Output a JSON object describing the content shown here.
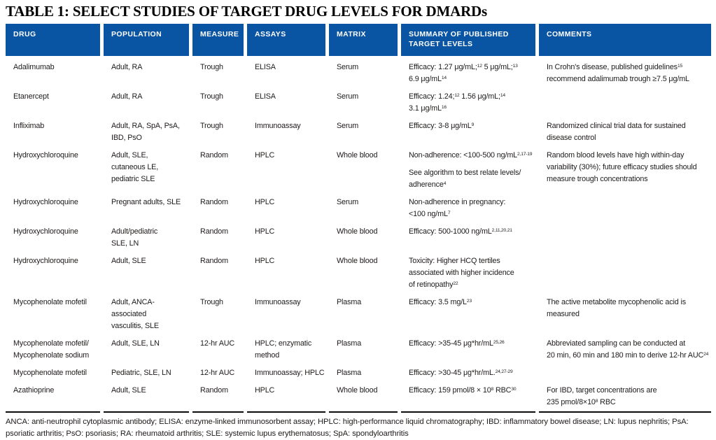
{
  "title": "TABLE 1: SELECT STUDIES OF TARGET DRUG LEVELS FOR DMARDs",
  "colors": {
    "header_bg": "#0A55A3",
    "header_text": "#FFFFFF",
    "body_text": "#1E1B1A",
    "rule": "#0B0B0B"
  },
  "columns": [
    "DRUG",
    "POPULATION",
    "MEASURE",
    "ASSAYS",
    "MATRIX",
    "SUMMARY OF PUBLISHED\nTARGET LEVELS",
    "COMMENTS"
  ],
  "rows": [
    {
      "drug": "Adalimumab",
      "population": "Adult, RA",
      "measure": "Trough",
      "assays": "ELISA",
      "matrix": "Serum",
      "summary": [
        "Efficacy: 1.27 μg/mL;^{12} 5 μg/mL;^{13}\n6.9 μg/mL^{14}"
      ],
      "comments": [
        "In Crohn's disease, published guidelines^{15}\nrecommend adalimumab trough ≥7.5 μg/mL"
      ]
    },
    {
      "drug": "Etanercept",
      "population": "Adult, RA",
      "measure": "Trough",
      "assays": "ELISA",
      "matrix": "Serum",
      "summary": [
        "Efficacy: 1.24;^{12} 1.56 μg/mL;^{14}\n3.1 μg/mL^{16}"
      ],
      "comments": []
    },
    {
      "drug": "Infliximab",
      "population": "Adult, RA, SpA, PsA,\nIBD, PsO",
      "measure": "Trough",
      "assays": "Immunoassay",
      "matrix": "Serum",
      "summary": [
        "Efficacy: 3-8 μg/mL^{9}"
      ],
      "comments": [
        "Randomized clinical trial data for sustained\ndisease control"
      ]
    },
    {
      "drug": "Hydroxychloroquine",
      "population": "Adult, SLE,\ncutaneous LE,\npediatric SLE",
      "measure": "Random",
      "assays": "HPLC",
      "matrix": "Whole blood",
      "summary": [
        "Non-adherence: <100-500 ng/mL^{2,17-19}",
        "See algorithm to best relate levels/\nadherence^{4}"
      ],
      "comments": [
        "Random blood levels have high within-day\nvariability (30%); future efficacy studies should\nmeasure trough concentrations"
      ]
    },
    {
      "drug": "Hydroxychloroquine",
      "population": "Pregnant adults, SLE",
      "measure": "Random",
      "assays": "HPLC",
      "matrix": "Serum",
      "summary": [
        "Non-adherence in pregnancy:\n<100 ng/mL^{7}"
      ],
      "comments": []
    },
    {
      "drug": "Hydroxychloroquine",
      "population": "Adult/pediatric\nSLE, LN",
      "measure": "Random",
      "assays": "HPLC",
      "matrix": "Whole blood",
      "summary": [
        "Efficacy: 500-1000 ng/mL^{2,11,20,21}"
      ],
      "comments": []
    },
    {
      "drug": "Hydroxychloroquine",
      "population": "Adult, SLE",
      "measure": "Random",
      "assays": "HPLC",
      "matrix": "Whole blood",
      "summary": [
        "Toxicity: Higher HCQ tertiles\nassociated with higher incidence\nof retinopathy^{22}"
      ],
      "comments": []
    },
    {
      "drug": "Mycophenolate mofetil",
      "population": "Adult, ANCA-associated\nvasculitis, SLE",
      "measure": "Trough",
      "assays": "Immunoassay",
      "matrix": "Plasma",
      "summary": [
        "Efficacy: 3.5 mg/L^{23}"
      ],
      "comments": [
        "The active metabolite mycophenolic acid is\nmeasured"
      ]
    },
    {
      "drug": "Mycophenolate mofetil/\nMycophenolate sodium",
      "population": "Adult, SLE, LN",
      "measure": "12-hr AUC",
      "assays": "HPLC; enzymatic\nmethod",
      "matrix": "Plasma",
      "summary": [
        "Efficacy: >35-45 μg*hr/mL^{25,26}"
      ],
      "comments": [
        "Abbreviated sampling can be conducted at\n20 min, 60 min and 180 min to derive 12-hr AUC^{24}"
      ]
    },
    {
      "drug": "Mycophenolate mofetil",
      "population": "Pediatric, SLE, LN",
      "measure": "12-hr AUC",
      "assays": "Immunoassay; HPLC",
      "matrix": "Plasma",
      "summary": [
        "Efficacy: >30-45 μg*hr/mL.^{24,27-29}"
      ],
      "comments": []
    },
    {
      "drug": "Azathioprine",
      "population": "Adult, SLE",
      "measure": "Random",
      "assays": "HPLC",
      "matrix": "Whole blood",
      "summary": [
        "Efficacy: 159 pmol/8 × 10^{8} RBC^{30}"
      ],
      "comments": [
        "For IBD, target concentrations are\n235 pmol/8×10^{8} RBC"
      ]
    }
  ],
  "footnote": "ANCA: anti-neutrophil cytoplasmic antibody; ELISA: enzyme-linked immunosorbent assay; HPLC: high-performance liquid chromatography; IBD: inflammatory bowel disease; LN: lupus nephritis; PsA: psoriatic arthritis; PsO: psoriasis; RA: rheumatoid arthritis; SLE: systemic lupus erythematosus; SpA: spondyloarthritis"
}
